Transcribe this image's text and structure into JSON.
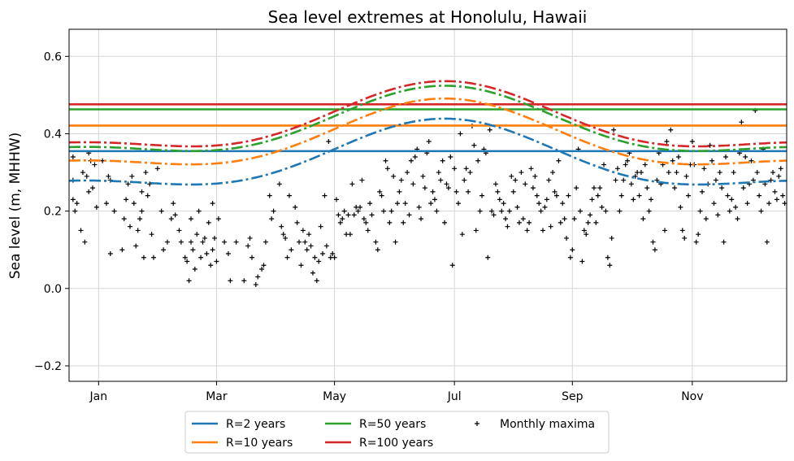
{
  "chart_data": {
    "type": "line",
    "title": "Sea level extremes at Honolulu, Hawaii",
    "xlabel": "",
    "ylabel": "Sea level (m, MHHW)",
    "xlim": [
      1,
      366
    ],
    "ylim": [
      -0.24,
      0.67
    ],
    "x_ticks": [
      {
        "label": "Jan",
        "value": 16
      },
      {
        "label": "Mar",
        "value": 76
      },
      {
        "label": "May",
        "value": 136
      },
      {
        "label": "Jul",
        "value": 197
      },
      {
        "label": "Sep",
        "value": 257
      },
      {
        "label": "Nov",
        "value": 318
      }
    ],
    "y_ticks": [
      {
        "label": "−0.2",
        "value": -0.2
      },
      {
        "label": "0.0",
        "value": 0.0
      },
      {
        "label": "0.2",
        "value": 0.2
      },
      {
        "label": "0.4",
        "value": 0.4
      },
      {
        "label": "0.6",
        "value": 0.6
      }
    ],
    "grid": true,
    "legend_position": "bottom-center (below plot)",
    "series": [
      {
        "name": "R=2 years",
        "color": "#1f77b4",
        "stationary_level": 0.355,
        "seasonal": {
          "mean": 0.326,
          "amplitude": 0.08,
          "peak_day": 192
        }
      },
      {
        "name": "R=10 years",
        "color": "#ff7f0e",
        "stationary_level": 0.421,
        "seasonal": {
          "mean": 0.378,
          "amplitude": 0.08,
          "peak_day": 192
        }
      },
      {
        "name": "R=50 years",
        "color": "#2ca02c",
        "stationary_level": 0.463,
        "seasonal": {
          "mean": 0.412,
          "amplitude": 0.079,
          "peak_day": 192
        }
      },
      {
        "name": "R=100 years",
        "color": "#d62728",
        "stationary_level": 0.476,
        "seasonal": {
          "mean": 0.424,
          "amplitude": 0.079,
          "peak_day": 192
        }
      }
    ],
    "seasonal_harmonic_2": {
      "amplitude": 0.033,
      "peak_day": 192
    },
    "scatter": {
      "name": "Monthly maxima",
      "marker": "+",
      "color": "#000000",
      "points": [
        [
          3,
          0.34
        ],
        [
          3,
          0.28
        ],
        [
          3,
          0.23
        ],
        [
          4,
          0.2
        ],
        [
          5,
          0.22
        ],
        [
          7,
          0.15
        ],
        [
          8,
          0.3
        ],
        [
          9,
          0.12
        ],
        [
          10,
          0.29
        ],
        [
          11,
          0.35
        ],
        [
          11,
          0.25
        ],
        [
          12,
          0.33
        ],
        [
          13,
          0.26
        ],
        [
          14,
          0.32
        ],
        [
          15,
          0.21
        ],
        [
          18,
          0.33
        ],
        [
          20,
          0.22
        ],
        [
          21,
          0.29
        ],
        [
          22,
          0.09
        ],
        [
          22,
          0.28
        ],
        [
          24,
          0.2
        ],
        [
          28,
          0.1
        ],
        [
          29,
          0.18
        ],
        [
          30,
          0.23
        ],
        [
          31,
          0.27
        ],
        [
          32,
          0.16
        ],
        [
          33,
          0.29
        ],
        [
          34,
          0.22
        ],
        [
          35,
          0.11
        ],
        [
          36,
          0.15
        ],
        [
          37,
          0.18
        ],
        [
          38,
          0.25
        ],
        [
          38,
          0.2
        ],
        [
          39,
          0.08
        ],
        [
          40,
          0.3
        ],
        [
          41,
          0.24
        ],
        [
          42,
          0.27
        ],
        [
          43,
          0.14
        ],
        [
          44,
          0.08
        ],
        [
          46,
          0.31
        ],
        [
          48,
          0.2
        ],
        [
          49,
          0.1
        ],
        [
          51,
          0.12
        ],
        [
          53,
          0.18
        ],
        [
          54,
          0.22
        ],
        [
          55,
          0.19
        ],
        [
          57,
          0.15
        ],
        [
          58,
          0.12
        ],
        [
          60,
          0.08
        ],
        [
          61,
          0.07
        ],
        [
          62,
          0.02
        ],
        [
          63,
          0.12
        ],
        [
          63,
          0.18
        ],
        [
          64,
          0.1
        ],
        [
          65,
          0.05
        ],
        [
          66,
          0.14
        ],
        [
          67,
          0.2
        ],
        [
          68,
          0.08
        ],
        [
          69,
          0.12
        ],
        [
          70,
          0.13
        ],
        [
          71,
          0.09
        ],
        [
          72,
          0.17
        ],
        [
          73,
          0.06
        ],
        [
          74,
          0.1
        ],
        [
          74,
          0.22
        ],
        [
          75,
          0.13
        ],
        [
          76,
          0.07
        ],
        [
          77,
          0.18
        ],
        [
          80,
          0.12
        ],
        [
          82,
          0.09
        ],
        [
          83,
          0.02
        ],
        [
          86,
          0.12
        ],
        [
          90,
          0.02
        ],
        [
          92,
          0.11
        ],
        [
          93,
          0.13
        ],
        [
          94,
          0.08
        ],
        [
          96,
          0.01
        ],
        [
          97,
          0.03
        ],
        [
          99,
          0.05
        ],
        [
          100,
          0.06
        ],
        [
          101,
          0.12
        ],
        [
          103,
          0.24
        ],
        [
          104,
          0.18
        ],
        [
          105,
          0.2
        ],
        [
          108,
          0.27
        ],
        [
          109,
          0.16
        ],
        [
          110,
          0.14
        ],
        [
          111,
          0.13
        ],
        [
          112,
          0.08
        ],
        [
          113,
          0.24
        ],
        [
          114,
          0.1
        ],
        [
          116,
          0.21
        ],
        [
          117,
          0.17
        ],
        [
          118,
          0.12
        ],
        [
          119,
          0.06
        ],
        [
          120,
          0.15
        ],
        [
          121,
          0.12
        ],
        [
          122,
          0.1
        ],
        [
          123,
          0.14
        ],
        [
          124,
          0.11
        ],
        [
          125,
          0.04
        ],
        [
          126,
          0.08
        ],
        [
          127,
          0.02
        ],
        [
          128,
          0.07
        ],
        [
          129,
          0.16
        ],
        [
          130,
          0.09
        ],
        [
          131,
          0.24
        ],
        [
          132,
          0.11
        ],
        [
          133,
          0.38
        ],
        [
          134,
          0.08
        ],
        [
          135,
          0.09
        ],
        [
          136,
          0.08
        ],
        [
          137,
          0.23
        ],
        [
          138,
          0.19
        ],
        [
          139,
          0.17
        ],
        [
          140,
          0.18
        ],
        [
          141,
          0.2
        ],
        [
          142,
          0.14
        ],
        [
          143,
          0.19
        ],
        [
          144,
          0.14
        ],
        [
          145,
          0.27
        ],
        [
          146,
          0.19
        ],
        [
          147,
          0.21
        ],
        [
          148,
          0.2
        ],
        [
          149,
          0.21
        ],
        [
          150,
          0.28
        ],
        [
          151,
          0.18
        ],
        [
          152,
          0.17
        ],
        [
          153,
          0.15
        ],
        [
          154,
          0.22
        ],
        [
          155,
          0.19
        ],
        [
          157,
          0.12
        ],
        [
          158,
          0.1
        ],
        [
          159,
          0.25
        ],
        [
          160,
          0.24
        ],
        [
          161,
          0.2
        ],
        [
          162,
          0.33
        ],
        [
          163,
          0.31
        ],
        [
          164,
          0.17
        ],
        [
          165,
          0.2
        ],
        [
          166,
          0.29
        ],
        [
          167,
          0.12
        ],
        [
          168,
          0.22
        ],
        [
          169,
          0.25
        ],
        [
          170,
          0.28
        ],
        [
          171,
          0.17
        ],
        [
          172,
          0.22
        ],
        [
          173,
          0.3
        ],
        [
          174,
          0.19
        ],
        [
          175,
          0.33
        ],
        [
          176,
          0.27
        ],
        [
          177,
          0.34
        ],
        [
          178,
          0.36
        ],
        [
          179,
          0.21
        ],
        [
          180,
          0.18
        ],
        [
          181,
          0.29
        ],
        [
          182,
          0.26
        ],
        [
          183,
          0.35
        ],
        [
          184,
          0.38
        ],
        [
          185,
          0.22
        ],
        [
          186,
          0.25
        ],
        [
          187,
          0.23
        ],
        [
          188,
          0.2
        ],
        [
          189,
          0.3
        ],
        [
          190,
          0.28
        ],
        [
          191,
          0.33
        ],
        [
          192,
          0.17
        ],
        [
          193,
          0.27
        ],
        [
          194,
          0.26
        ],
        [
          195,
          0.34
        ],
        [
          196,
          0.06
        ],
        [
          197,
          0.31
        ],
        [
          198,
          0.25
        ],
        [
          199,
          0.22
        ],
        [
          200,
          0.4
        ],
        [
          201,
          0.14
        ],
        [
          202,
          0.28
        ],
        [
          203,
          0.31
        ],
        [
          204,
          0.25
        ],
        [
          205,
          0.3
        ],
        [
          206,
          0.42
        ],
        [
          207,
          0.37
        ],
        [
          208,
          0.15
        ],
        [
          209,
          0.33
        ],
        [
          210,
          0.2
        ],
        [
          211,
          0.24
        ],
        [
          212,
          0.36
        ],
        [
          213,
          0.35
        ],
        [
          214,
          0.08
        ],
        [
          215,
          0.41
        ],
        [
          216,
          0.2
        ],
        [
          217,
          0.19
        ],
        [
          218,
          0.27
        ],
        [
          219,
          0.25
        ],
        [
          220,
          0.23
        ],
        [
          221,
          0.2
        ],
        [
          222,
          0.22
        ],
        [
          223,
          0.18
        ],
        [
          224,
          0.16
        ],
        [
          225,
          0.2
        ],
        [
          226,
          0.29
        ],
        [
          227,
          0.25
        ],
        [
          228,
          0.28
        ],
        [
          229,
          0.21
        ],
        [
          230,
          0.17
        ],
        [
          231,
          0.3
        ],
        [
          232,
          0.18
        ],
        [
          233,
          0.27
        ],
        [
          234,
          0.15
        ],
        [
          235,
          0.17
        ],
        [
          236,
          0.31
        ],
        [
          237,
          0.26
        ],
        [
          238,
          0.29
        ],
        [
          239,
          0.24
        ],
        [
          240,
          0.22
        ],
        [
          241,
          0.2
        ],
        [
          242,
          0.15
        ],
        [
          243,
          0.21
        ],
        [
          244,
          0.23
        ],
        [
          245,
          0.28
        ],
        [
          246,
          0.16
        ],
        [
          247,
          0.3
        ],
        [
          248,
          0.25
        ],
        [
          249,
          0.24
        ],
        [
          250,
          0.33
        ],
        [
          251,
          0.17
        ],
        [
          252,
          0.22
        ],
        [
          253,
          0.18
        ],
        [
          254,
          0.13
        ],
        [
          255,
          0.24
        ],
        [
          256,
          0.08
        ],
        [
          257,
          0.1
        ],
        [
          258,
          0.18
        ],
        [
          259,
          0.26
        ],
        [
          260,
          0.36
        ],
        [
          261,
          0.2
        ],
        [
          262,
          0.07
        ],
        [
          263,
          0.15
        ],
        [
          264,
          0.14
        ],
        [
          265,
          0.17
        ],
        [
          266,
          0.19
        ],
        [
          267,
          0.23
        ],
        [
          268,
          0.26
        ],
        [
          269,
          0.17
        ],
        [
          270,
          0.24
        ],
        [
          271,
          0.26
        ],
        [
          272,
          0.21
        ],
        [
          273,
          0.32
        ],
        [
          274,
          0.2
        ],
        [
          275,
          0.08
        ],
        [
          276,
          0.06
        ],
        [
          277,
          0.13
        ],
        [
          278,
          0.41
        ],
        [
          279,
          0.28
        ],
        [
          280,
          0.31
        ],
        [
          281,
          0.2
        ],
        [
          282,
          0.24
        ],
        [
          283,
          0.28
        ],
        [
          284,
          0.32
        ],
        [
          285,
          0.33
        ],
        [
          286,
          0.35
        ],
        [
          287,
          0.27
        ],
        [
          288,
          0.23
        ],
        [
          289,
          0.29
        ],
        [
          290,
          0.3
        ],
        [
          291,
          0.24
        ],
        [
          292,
          0.3
        ],
        [
          293,
          0.18
        ],
        [
          294,
          0.32
        ],
        [
          295,
          0.26
        ],
        [
          296,
          0.2
        ],
        [
          297,
          0.23
        ],
        [
          298,
          0.12
        ],
        [
          299,
          0.1
        ],
        [
          300,
          0.28
        ],
        [
          301,
          0.35
        ],
        [
          302,
          0.27
        ],
        [
          303,
          0.32
        ],
        [
          304,
          0.15
        ],
        [
          305,
          0.38
        ],
        [
          306,
          0.3
        ],
        [
          307,
          0.41
        ],
        [
          308,
          0.33
        ],
        [
          309,
          0.26
        ],
        [
          310,
          0.3
        ],
        [
          311,
          0.34
        ],
        [
          312,
          0.21
        ],
        [
          313,
          0.15
        ],
        [
          314,
          0.13
        ],
        [
          315,
          0.29
        ],
        [
          316,
          0.24
        ],
        [
          317,
          0.32
        ],
        [
          318,
          0.38
        ],
        [
          319,
          0.32
        ],
        [
          320,
          0.12
        ],
        [
          321,
          0.14
        ],
        [
          322,
          0.2
        ],
        [
          323,
          0.25
        ],
        [
          324,
          0.31
        ],
        [
          325,
          0.18
        ],
        [
          326,
          0.27
        ],
        [
          327,
          0.37
        ],
        [
          328,
          0.33
        ],
        [
          329,
          0.22
        ],
        [
          330,
          0.28
        ],
        [
          331,
          0.19
        ],
        [
          332,
          0.3
        ],
        [
          333,
          0.26
        ],
        [
          334,
          0.12
        ],
        [
          335,
          0.34
        ],
        [
          336,
          0.24
        ],
        [
          337,
          0.2
        ],
        [
          338,
          0.23
        ],
        [
          339,
          0.3
        ],
        [
          340,
          0.21
        ],
        [
          341,
          0.18
        ],
        [
          342,
          0.35
        ],
        [
          343,
          0.43
        ],
        [
          344,
          0.26
        ],
        [
          345,
          0.34
        ],
        [
          346,
          0.22
        ],
        [
          347,
          0.27
        ],
        [
          348,
          0.33
        ],
        [
          349,
          0.28
        ],
        [
          350,
          0.46
        ],
        [
          351,
          0.3
        ],
        [
          352,
          0.24
        ],
        [
          353,
          0.2
        ],
        [
          354,
          0.36
        ],
        [
          355,
          0.27
        ],
        [
          356,
          0.12
        ],
        [
          357,
          0.22
        ],
        [
          358,
          0.28
        ],
        [
          359,
          0.3
        ],
        [
          360,
          0.25
        ],
        [
          361,
          0.23
        ],
        [
          362,
          0.29
        ],
        [
          363,
          0.31
        ],
        [
          364,
          0.24
        ],
        [
          365,
          0.22
        ]
      ]
    }
  }
}
